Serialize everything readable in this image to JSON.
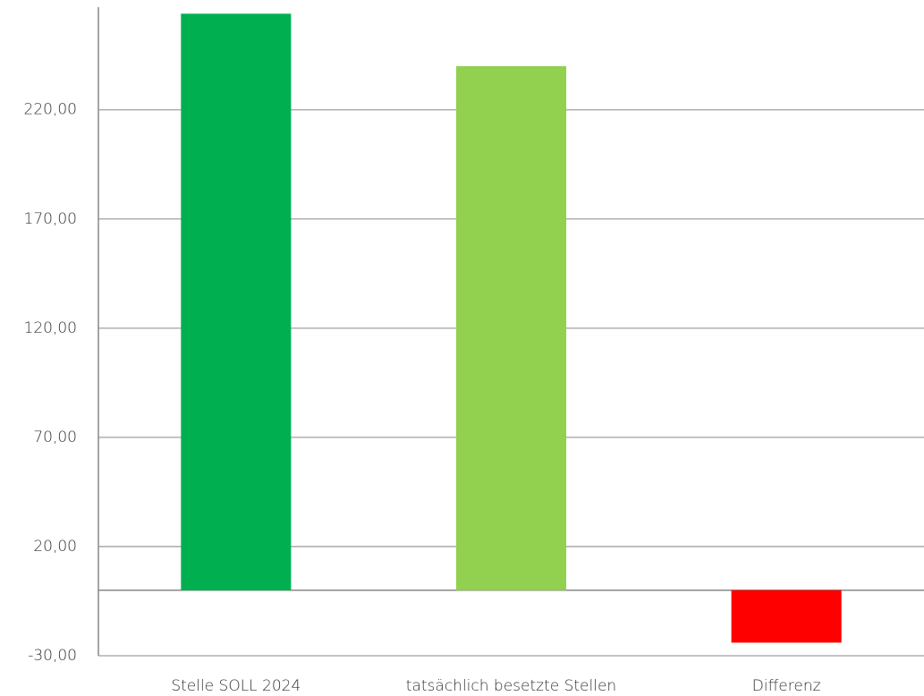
{
  "chart_data": {
    "type": "bar",
    "categories": [
      "Stelle SOLL 2024",
      "tatsächlich besetzte Stellen",
      "Differenz"
    ],
    "values": [
      264,
      240,
      -24
    ],
    "colors": [
      "#00b050",
      "#92d050",
      "#ff0000"
    ],
    "ylim": [
      -30,
      267
    ],
    "yticks": [
      {
        "value": -30,
        "label": "-30,00"
      },
      {
        "value": 20,
        "label": "20,00"
      },
      {
        "value": 70,
        "label": "70,00"
      },
      {
        "value": 120,
        "label": "120,00"
      },
      {
        "value": 170,
        "label": "170,00"
      },
      {
        "value": 220,
        "label": "220,00"
      }
    ],
    "grid": true
  }
}
